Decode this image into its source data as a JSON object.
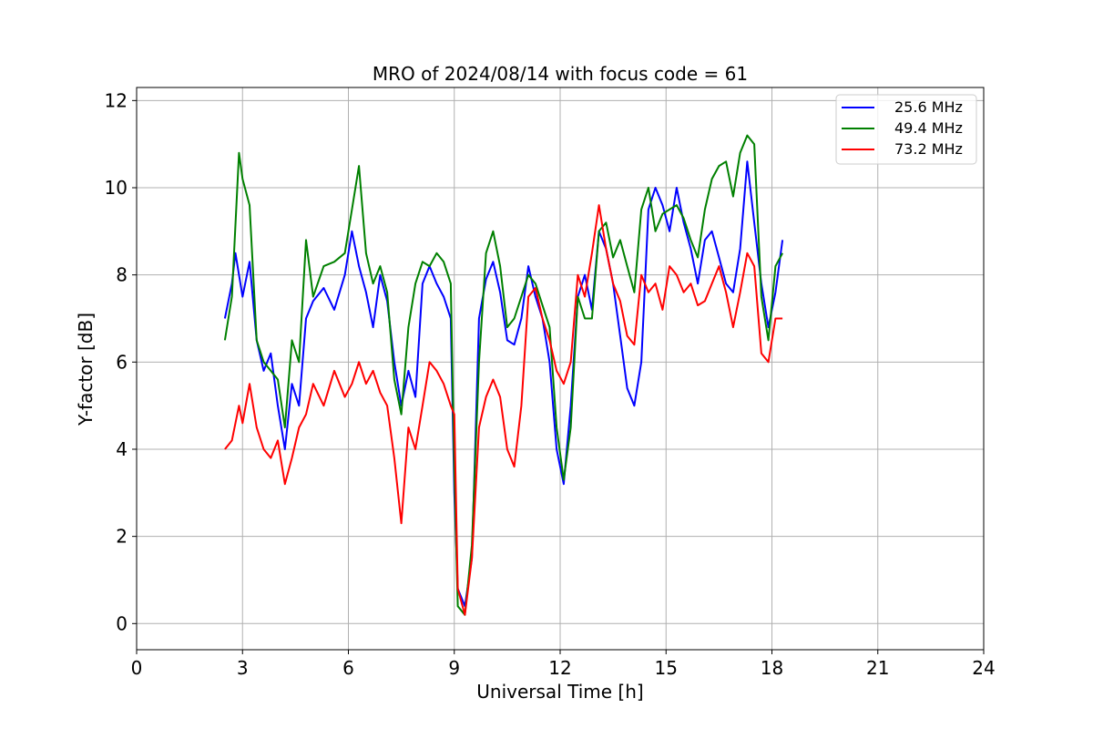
{
  "chart_data": {
    "type": "line",
    "title": "MRO of 2024/08/14 with focus code = 61",
    "xlabel": "Universal Time [h]",
    "ylabel": "Y-factor [dB]",
    "xlim": [
      0,
      24
    ],
    "ylim": [
      -0.6,
      12.3
    ],
    "xticks": [
      0,
      3,
      6,
      9,
      12,
      15,
      18,
      21,
      24
    ],
    "yticks": [
      0,
      2,
      4,
      6,
      8,
      10,
      12
    ],
    "grid": true,
    "legend_position": "top-right",
    "series": [
      {
        "name": "25.6 MHz",
        "color": "#0000ff",
        "x": [
          2.5,
          2.7,
          2.8,
          3.0,
          3.2,
          3.4,
          3.6,
          3.8,
          4.0,
          4.2,
          4.4,
          4.6,
          4.8,
          5.0,
          5.3,
          5.6,
          5.9,
          6.1,
          6.3,
          6.5,
          6.7,
          6.9,
          7.1,
          7.3,
          7.5,
          7.7,
          7.9,
          8.1,
          8.3,
          8.5,
          8.7,
          8.9,
          9.0,
          9.1,
          9.3,
          9.5,
          9.7,
          9.9,
          10.1,
          10.3,
          10.5,
          10.7,
          10.9,
          11.1,
          11.3,
          11.5,
          11.7,
          11.9,
          12.1,
          12.3,
          12.5,
          12.7,
          12.9,
          13.1,
          13.3,
          13.5,
          13.7,
          13.9,
          14.1,
          14.3,
          14.5,
          14.7,
          14.9,
          15.1,
          15.3,
          15.5,
          15.7,
          15.9,
          16.1,
          16.3,
          16.5,
          16.7,
          16.9,
          17.1,
          17.3,
          17.5,
          17.7,
          17.9,
          18.1,
          18.3
        ],
        "y": [
          7.0,
          7.8,
          8.5,
          7.5,
          8.3,
          6.5,
          5.8,
          6.2,
          5.0,
          4.0,
          5.5,
          5.0,
          7.0,
          7.4,
          7.7,
          7.2,
          8.0,
          9.0,
          8.2,
          7.6,
          6.8,
          8.0,
          7.4,
          6.0,
          5.0,
          5.8,
          5.2,
          7.8,
          8.2,
          7.8,
          7.5,
          7.0,
          3.0,
          0.8,
          0.4,
          1.5,
          7.0,
          7.9,
          8.3,
          7.6,
          6.5,
          6.4,
          7.0,
          8.2,
          7.5,
          7.0,
          6.0,
          4.0,
          3.2,
          5.0,
          7.5,
          8.0,
          7.2,
          9.0,
          8.6,
          7.8,
          6.6,
          5.4,
          5.0,
          6.0,
          9.5,
          10.0,
          9.6,
          9.0,
          10.0,
          9.2,
          8.6,
          7.8,
          8.8,
          9.0,
          8.4,
          7.8,
          7.6,
          8.6,
          10.6,
          9.2,
          7.8,
          6.8,
          7.6,
          8.8
        ]
      },
      {
        "name": "49.4 MHz",
        "color": "#008000",
        "x": [
          2.5,
          2.7,
          2.9,
          3.0,
          3.2,
          3.4,
          3.6,
          3.8,
          4.0,
          4.2,
          4.4,
          4.6,
          4.8,
          5.0,
          5.3,
          5.6,
          5.9,
          6.1,
          6.3,
          6.5,
          6.7,
          6.9,
          7.1,
          7.3,
          7.5,
          7.7,
          7.9,
          8.1,
          8.3,
          8.5,
          8.7,
          8.9,
          9.0,
          9.1,
          9.3,
          9.5,
          9.7,
          9.9,
          10.1,
          10.3,
          10.5,
          10.7,
          10.9,
          11.1,
          11.3,
          11.5,
          11.7,
          11.9,
          12.1,
          12.3,
          12.5,
          12.7,
          12.9,
          13.1,
          13.3,
          13.5,
          13.7,
          13.9,
          14.1,
          14.3,
          14.5,
          14.7,
          14.9,
          15.1,
          15.3,
          15.5,
          15.7,
          15.9,
          16.1,
          16.3,
          16.5,
          16.7,
          16.9,
          17.1,
          17.3,
          17.5,
          17.7,
          17.9,
          18.1,
          18.3
        ],
        "y": [
          6.5,
          7.5,
          10.8,
          10.2,
          9.6,
          6.5,
          6.0,
          5.8,
          5.6,
          4.5,
          6.5,
          6.0,
          8.8,
          7.5,
          8.2,
          8.3,
          8.5,
          9.5,
          10.5,
          8.5,
          7.8,
          8.2,
          7.6,
          5.6,
          4.8,
          6.8,
          7.8,
          8.3,
          8.2,
          8.5,
          8.3,
          7.8,
          3.5,
          0.4,
          0.2,
          1.8,
          6.0,
          8.5,
          9.0,
          8.2,
          6.8,
          7.0,
          7.5,
          8.0,
          7.8,
          7.3,
          6.8,
          4.5,
          3.3,
          4.5,
          7.5,
          7.0,
          7.0,
          9.0,
          9.2,
          8.4,
          8.8,
          8.2,
          7.6,
          9.5,
          10.0,
          9.0,
          9.4,
          9.5,
          9.6,
          9.3,
          8.8,
          8.4,
          9.5,
          10.2,
          10.5,
          10.6,
          9.8,
          10.8,
          11.2,
          11.0,
          7.5,
          6.5,
          8.2,
          8.5
        ]
      },
      {
        "name": "73.2 MHz",
        "color": "#ff0000",
        "x": [
          2.5,
          2.7,
          2.9,
          3.0,
          3.2,
          3.4,
          3.6,
          3.8,
          4.0,
          4.2,
          4.4,
          4.6,
          4.8,
          5.0,
          5.3,
          5.6,
          5.9,
          6.1,
          6.3,
          6.5,
          6.7,
          6.9,
          7.1,
          7.3,
          7.5,
          7.7,
          7.9,
          8.1,
          8.3,
          8.5,
          8.7,
          8.9,
          9.0,
          9.1,
          9.3,
          9.5,
          9.7,
          9.9,
          10.1,
          10.3,
          10.5,
          10.7,
          10.9,
          11.1,
          11.3,
          11.5,
          11.7,
          11.9,
          12.1,
          12.3,
          12.5,
          12.7,
          12.9,
          13.1,
          13.3,
          13.5,
          13.7,
          13.9,
          14.1,
          14.3,
          14.5,
          14.7,
          14.9,
          15.1,
          15.3,
          15.5,
          15.7,
          15.9,
          16.1,
          16.3,
          16.5,
          16.7,
          16.9,
          17.1,
          17.3,
          17.5,
          17.7,
          17.9,
          18.1,
          18.3
        ],
        "y": [
          4.0,
          4.2,
          5.0,
          4.6,
          5.5,
          4.5,
          4.0,
          3.8,
          4.2,
          3.2,
          3.8,
          4.5,
          4.8,
          5.5,
          5.0,
          5.8,
          5.2,
          5.5,
          6.0,
          5.5,
          5.8,
          5.3,
          5.0,
          3.8,
          2.3,
          4.5,
          4.0,
          5.0,
          6.0,
          5.8,
          5.5,
          5.0,
          4.8,
          0.8,
          0.2,
          1.5,
          4.5,
          5.2,
          5.6,
          5.2,
          4.0,
          3.6,
          5.0,
          7.5,
          7.7,
          7.0,
          6.5,
          5.8,
          5.5,
          6.0,
          8.0,
          7.5,
          8.5,
          9.6,
          8.6,
          7.8,
          7.4,
          6.6,
          6.4,
          8.0,
          7.6,
          7.8,
          7.2,
          8.2,
          8.0,
          7.6,
          7.8,
          7.3,
          7.4,
          7.8,
          8.2,
          7.6,
          6.8,
          7.6,
          8.5,
          8.2,
          6.2,
          6.0,
          7.0,
          7.0
        ]
      }
    ]
  }
}
